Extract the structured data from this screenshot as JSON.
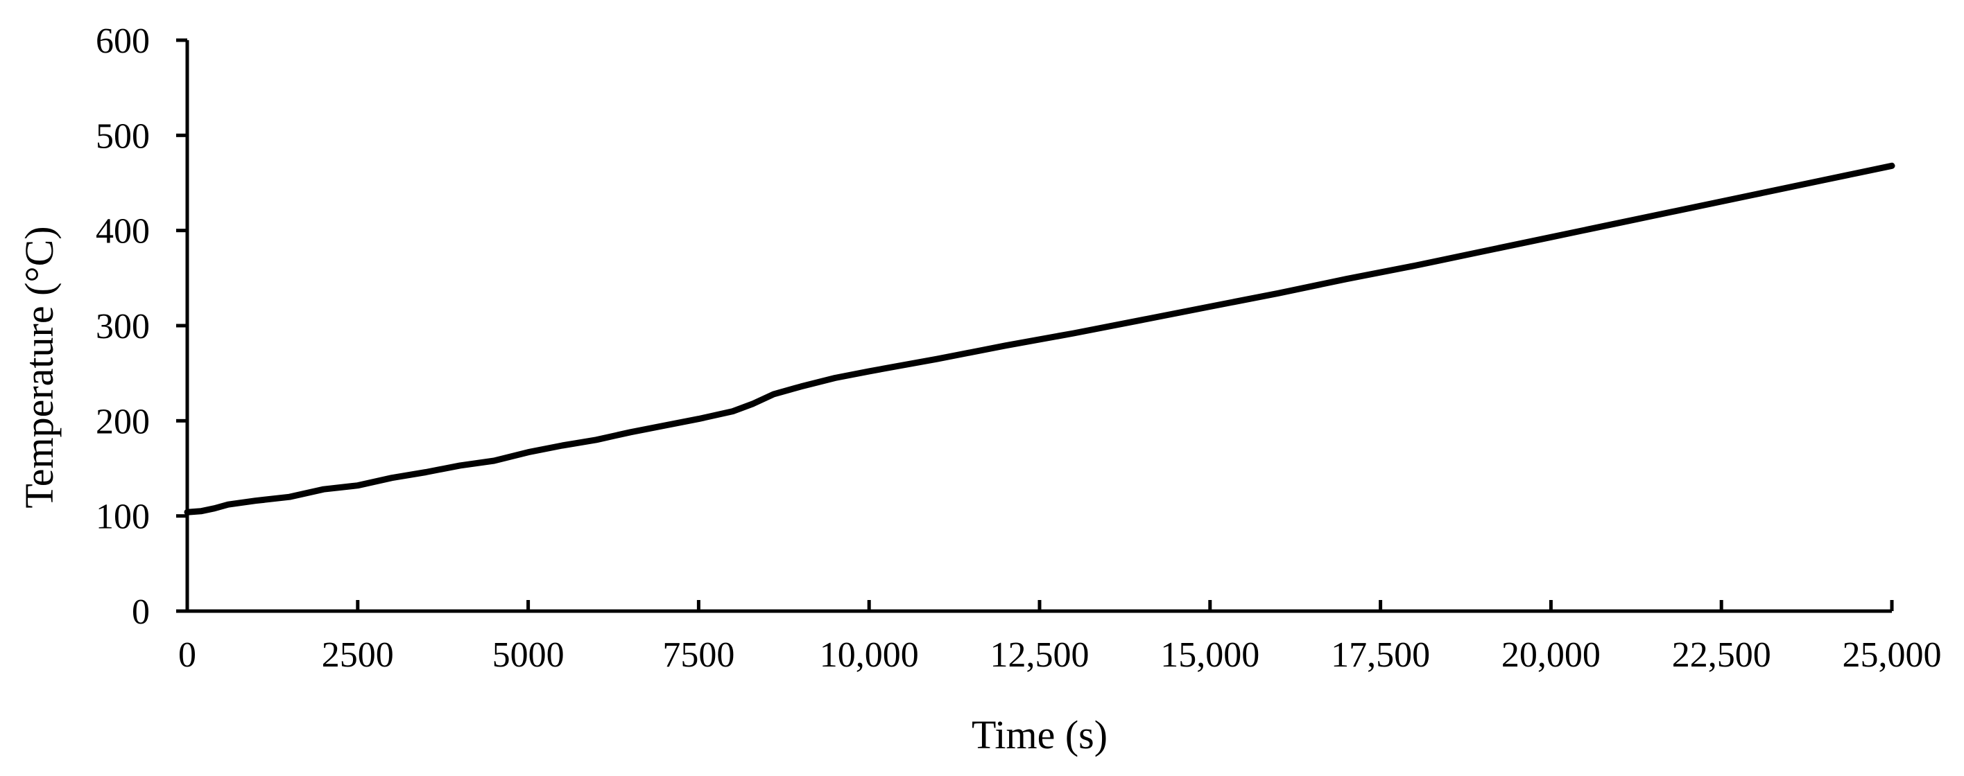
{
  "chart_data": {
    "type": "line",
    "title": "",
    "xlabel": "Time (s)",
    "ylabel": "Temperature (°C)",
    "xlim": [
      0,
      25000
    ],
    "ylim": [
      0,
      600
    ],
    "xticks": [
      0,
      2500,
      5000,
      7500,
      10000,
      12500,
      15000,
      17500,
      20000,
      22500,
      25000
    ],
    "xtick_labels": [
      "0",
      "2500",
      "5000",
      "7500",
      "10,000",
      "12,500",
      "15,000",
      "17,500",
      "20,000",
      "22,500",
      "25,000"
    ],
    "yticks": [
      0,
      100,
      200,
      300,
      400,
      500,
      600
    ],
    "ytick_labels": [
      "0",
      "100",
      "200",
      "300",
      "400",
      "500",
      "600"
    ],
    "grid": false,
    "line_color": "#000000",
    "series": [
      {
        "x": [
          0,
          200,
          400,
          600,
          1000,
          1500,
          2000,
          2500,
          3000,
          3500,
          4000,
          4500,
          5000,
          5500,
          6000,
          6500,
          7000,
          7500,
          8000,
          8300,
          8600,
          9000,
          9500,
          10000,
          11000,
          12000,
          13000,
          14000,
          15000,
          16000,
          17000,
          18000,
          19000,
          20000,
          21000,
          22000,
          23000,
          24000,
          25000
        ],
        "y": [
          104,
          105,
          108,
          112,
          116,
          120,
          128,
          132,
          140,
          146,
          153,
          158,
          167,
          174,
          180,
          188,
          195,
          202,
          210,
          218,
          228,
          236,
          245,
          252,
          265,
          279,
          292,
          306,
          320,
          334,
          349,
          363,
          378,
          393,
          408,
          423,
          438,
          453,
          468
        ]
      }
    ]
  }
}
